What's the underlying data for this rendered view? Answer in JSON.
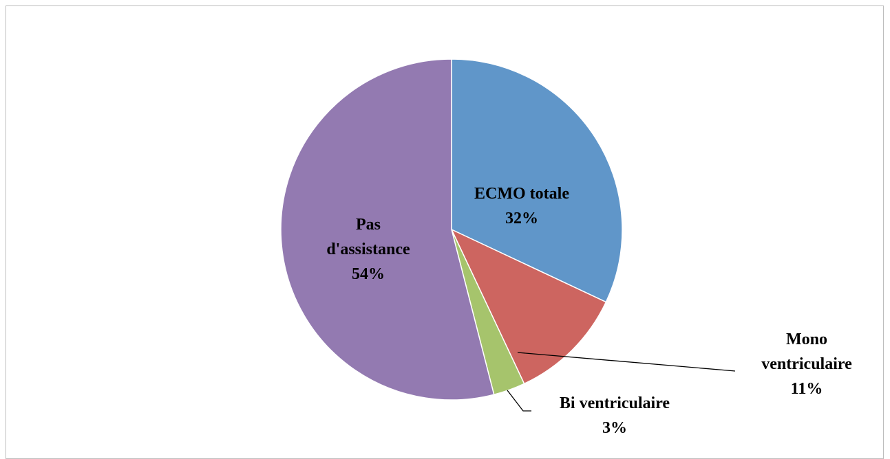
{
  "chart_data": {
    "type": "pie",
    "categories": [
      "ECMO totale",
      "Mono ventriculaire",
      "Bi ventriculaire",
      "Pas d'assistance"
    ],
    "values": [
      32,
      11,
      3,
      54
    ],
    "value_labels": [
      "32%",
      "11%",
      "3%",
      "54%"
    ],
    "colors": [
      "#6096c9",
      "#cd6560",
      "#a6c46c",
      "#937ab1"
    ]
  }
}
